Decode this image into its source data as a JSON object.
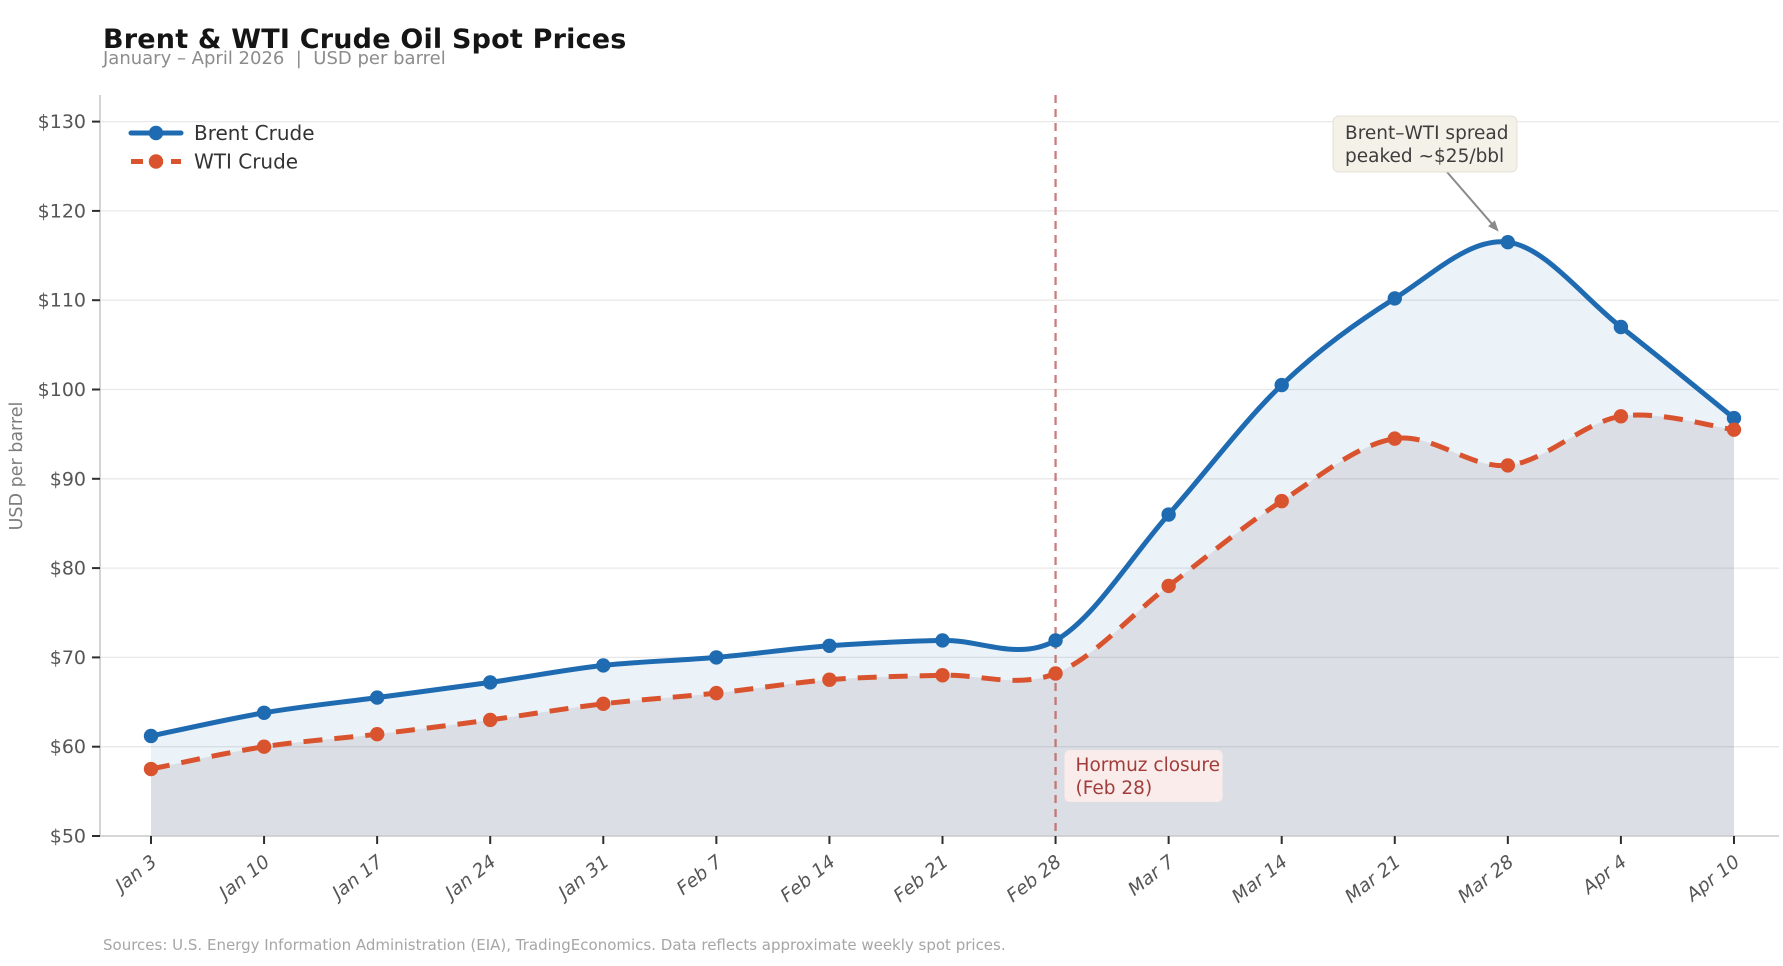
{
  "header": {
    "title": "Brent & WTI Crude Oil Spot Prices",
    "subtitle": "January – April 2026  |  USD per barrel"
  },
  "footer": {
    "text": "Sources: U.S. Energy Information Administration (EIA), TradingEconomics. Data reflects approximate weekly spot prices."
  },
  "chart_data": {
    "type": "line",
    "title": "Brent & WTI Crude Oil Spot Prices",
    "subtitle": "January – April 2026  |  USD per barrel",
    "xlabel": "",
    "ylabel": "USD per barrel",
    "ylim": [
      50,
      130
    ],
    "y_ticks": [
      {
        "value": 50,
        "label": "$50"
      },
      {
        "value": 60,
        "label": "$60"
      },
      {
        "value": 70,
        "label": "$70"
      },
      {
        "value": 80,
        "label": "$80"
      },
      {
        "value": 90,
        "label": "$90"
      },
      {
        "value": 100,
        "label": "$100"
      },
      {
        "value": 110,
        "label": "$110"
      },
      {
        "value": 120,
        "label": "$120"
      },
      {
        "value": 130,
        "label": "$130"
      }
    ],
    "grid": "horizontal",
    "legend_position": "top-left",
    "categories": [
      "Jan 3",
      "Jan 10",
      "Jan 17",
      "Jan 24",
      "Jan 31",
      "Feb 7",
      "Feb 14",
      "Feb 21",
      "Feb 28",
      "Mar 7",
      "Mar 14",
      "Mar 21",
      "Mar 28",
      "Apr 4",
      "Apr 10"
    ],
    "series": [
      {
        "name": "Brent Crude",
        "color": "#1f6bb2",
        "style": "solid",
        "fill_color": "rgba(31,107,178,0.09)",
        "values": [
          61.2,
          63.8,
          65.5,
          67.2,
          69.1,
          70.0,
          71.3,
          71.9,
          71.9,
          86.0,
          100.5,
          110.2,
          116.5,
          107.0,
          96.8
        ]
      },
      {
        "name": "WTI Crude",
        "color": "#d9542e",
        "style": "dashed",
        "fill_color": "rgba(125,112,115,0.14)",
        "values": [
          57.5,
          60.0,
          61.4,
          63.0,
          64.8,
          66.0,
          67.5,
          68.0,
          68.2,
          78.0,
          87.5,
          94.5,
          91.5,
          97.0,
          95.5
        ]
      }
    ],
    "annotations": {
      "event_line": {
        "x_category": "Feb 28",
        "label_line1": "Hormuz closure",
        "label_line2": "(Feb 28)",
        "line_color": "#bc5e5c",
        "text_color": "#a03d3b",
        "box_color": "#fbecec"
      },
      "callout": {
        "text_line1": "Brent–WTI spread",
        "text_line2": "peaked ~$25/bbl",
        "target_category": "Mar 28",
        "target_series": "Brent Crude",
        "target_value": 116.5,
        "box_color": "#f4f1e8",
        "box_border": "#e3e0d4",
        "text_color": "#3d3d3d",
        "arrow_color": "#8a8a8a"
      }
    },
    "axis_colors": {
      "spine": "#c9c9c9",
      "grid": "#e8e8e8",
      "tick_mark": "#2e2e2e",
      "tick_label": "#565656",
      "axis_label": "#7d7d7d",
      "legend_text": "#333333"
    }
  }
}
